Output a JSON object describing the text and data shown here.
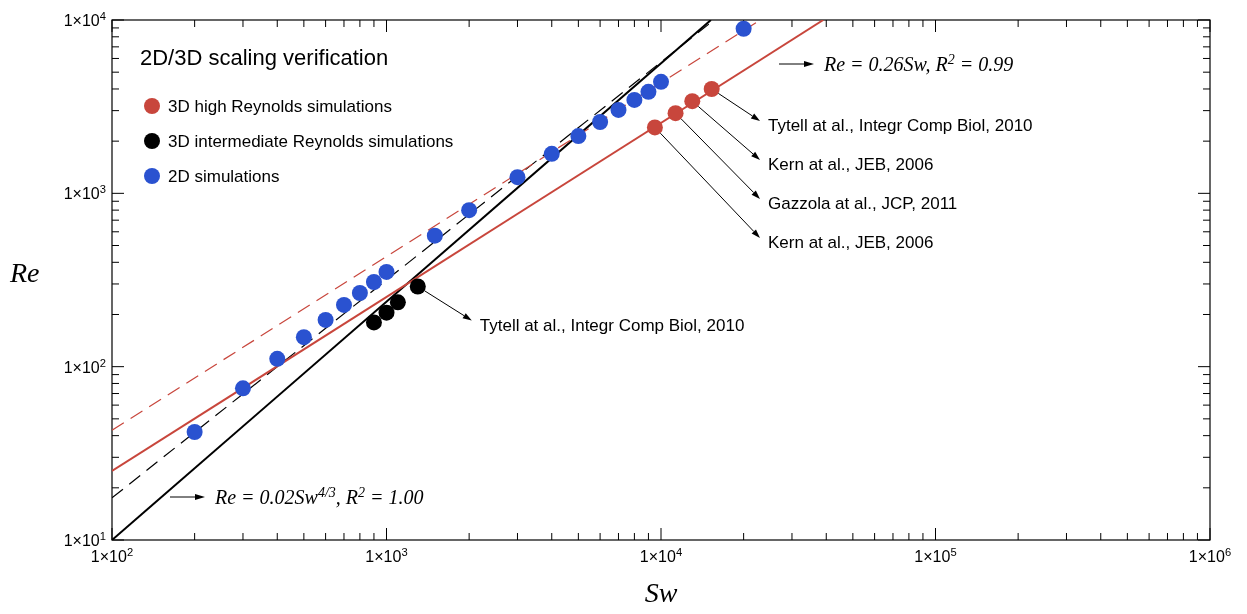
{
  "chart_data": {
    "type": "scatter",
    "legend_title": "2D/3D scaling verification",
    "xlabel": "Sw",
    "ylabel": "Re",
    "log": "xy",
    "grid": false,
    "legend": "top left",
    "marker": "circle",
    "xlim": [
      100,
      1000000
    ],
    "ylim": [
      10,
      10000
    ],
    "xticks": [
      {
        "value": 100,
        "label": "1×10$^{2}$"
      },
      {
        "value": 200,
        "label": null
      },
      {
        "value": 300,
        "label": null
      },
      {
        "value": 400,
        "label": null
      },
      {
        "value": 500,
        "label": null
      },
      {
        "value": 600,
        "label": null
      },
      {
        "value": 700,
        "label": null
      },
      {
        "value": 800,
        "label": null
      },
      {
        "value": 900,
        "label": null
      },
      {
        "value": 1000,
        "label": "1×10$^{3}$"
      },
      {
        "value": 2000,
        "label": null
      },
      {
        "value": 3000,
        "label": null
      },
      {
        "value": 4000,
        "label": null
      },
      {
        "value": 5000,
        "label": null
      },
      {
        "value": 6000,
        "label": null
      },
      {
        "value": 7000,
        "label": null
      },
      {
        "value": 8000,
        "label": null
      },
      {
        "value": 9000,
        "label": null
      },
      {
        "value": 10000,
        "label": "1×10$^{4}$"
      },
      {
        "value": 20000,
        "label": null
      },
      {
        "value": 30000,
        "label": null
      },
      {
        "value": 40000,
        "label": null
      },
      {
        "value": 50000,
        "label": null
      },
      {
        "value": 60000,
        "label": null
      },
      {
        "value": 70000,
        "label": null
      },
      {
        "value": 80000,
        "label": null
      },
      {
        "value": 90000,
        "label": null
      },
      {
        "value": 100000,
        "label": "1×10$^{5}$"
      },
      {
        "value": 200000,
        "label": null
      },
      {
        "value": 300000,
        "label": null
      },
      {
        "value": 400000,
        "label": null
      },
      {
        "value": 500000,
        "label": null
      },
      {
        "value": 600000,
        "label": null
      },
      {
        "value": 700000,
        "label": null
      },
      {
        "value": 800000,
        "label": null
      },
      {
        "value": 900000,
        "label": null
      },
      {
        "value": 1000000,
        "label": "1×10$^{6}$"
      }
    ],
    "yticks": [
      {
        "value": 10,
        "label": "1×10$^{1}$"
      },
      {
        "value": 20,
        "label": null
      },
      {
        "value": 30,
        "label": null
      },
      {
        "value": 40,
        "label": null
      },
      {
        "value": 50,
        "label": null
      },
      {
        "value": 60,
        "label": null
      },
      {
        "value": 70,
        "label": null
      },
      {
        "value": 80,
        "label": null
      },
      {
        "value": 90,
        "label": null
      },
      {
        "value": 100,
        "label": "1×10$^{2}$"
      },
      {
        "value": 200,
        "label": null
      },
      {
        "value": 300,
        "label": null
      },
      {
        "value": 400,
        "label": null
      },
      {
        "value": 500,
        "label": null
      },
      {
        "value": 600,
        "label": null
      },
      {
        "value": 700,
        "label": null
      },
      {
        "value": 800,
        "label": null
      },
      {
        "value": 900,
        "label": null
      },
      {
        "value": 1000,
        "label": "1×10$^{3}$"
      },
      {
        "value": 2000,
        "label": null
      },
      {
        "value": 3000,
        "label": null
      },
      {
        "value": 4000,
        "label": null
      },
      {
        "value": 5000,
        "label": null
      },
      {
        "value": 6000,
        "label": null
      },
      {
        "value": 7000,
        "label": null
      },
      {
        "value": 8000,
        "label": null
      },
      {
        "value": 9000,
        "label": null
      },
      {
        "value": 10000,
        "label": "1×10$^{4}$"
      }
    ],
    "series": [
      {
        "type": "line",
        "marker": "none",
        "color": "#000000",
        "line_style": "solid",
        "x": [
          100,
          15200
        ],
        "values": [
          10,
          10000
        ]
      },
      {
        "type": "line",
        "marker": "none",
        "color": "#000000",
        "line_style": "dashed",
        "x": [
          100,
          15600
        ],
        "values": [
          17.5,
          10000
        ]
      },
      {
        "type": "line",
        "marker": "none",
        "color": "#c8463c",
        "line_style": "solid",
        "x": [
          100,
          39000
        ],
        "values": [
          25,
          10000
        ]
      },
      {
        "type": "line",
        "marker": "none",
        "color": "#c8463c",
        "line_style": "dashed",
        "x": [
          100,
          23000
        ],
        "values": [
          43,
          10000
        ]
      },
      {
        "name": "3D high Reynolds simulations",
        "color": "#c8463c",
        "x": [
          9500,
          11300,
          13000,
          15300
        ],
        "values": [
          2400,
          2900,
          3400,
          4000
        ]
      },
      {
        "name": "3D intermediate Reynolds simulations",
        "color": "#000000",
        "x": [
          900,
          1000,
          1100,
          1300
        ],
        "values": [
          180,
          205,
          235,
          290
        ]
      },
      {
        "name": "2D simulations",
        "color": "#2a52d0",
        "x": [
          200,
          300,
          400,
          500,
          600,
          700,
          800,
          900,
          1000,
          1500,
          2000,
          3000,
          4000,
          5000,
          6000,
          7000,
          8000,
          9000,
          10000,
          20000
        ],
        "values": [
          42,
          75,
          111,
          148,
          186,
          227,
          266,
          308,
          352,
          570,
          800,
          1240,
          1690,
          2140,
          2580,
          3030,
          3460,
          3850,
          4400,
          8900
        ]
      }
    ],
    "annotations": [
      "Re = 0.26Sw,  R$^{2}$ = 0.99",
      "Re = 0.02Sw$^{4/3}$,  R$^{2}$ = 1.00",
      {
        "text": "Tytell at al., Integr Comp Biol, 2010",
        "x": 1300,
        "y": 290
      },
      {
        "text": "Tytell at al., Integr Comp Biol, 2010",
        "x": 15300,
        "y": 4000
      },
      {
        "text": "Kern at al., JEB, 2006",
        "x": 13000,
        "y": 3400
      },
      {
        "text": "Gazzola at al., JCP, 2011",
        "x": 11300,
        "y": 2900
      },
      {
        "text": "Kern at al., JEB, 2006",
        "x": 9500,
        "y": 2400
      }
    ]
  }
}
